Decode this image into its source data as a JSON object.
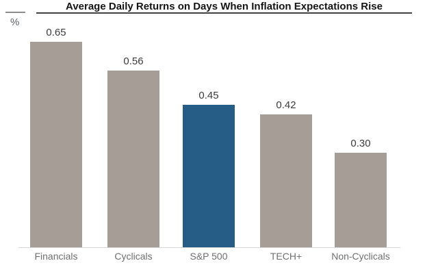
{
  "chart_data": {
    "type": "bar",
    "title": "Average Daily Returns on Days When Inflation Expectations Rise",
    "ylabel": "%",
    "categories": [
      "Financials",
      "Cyclicals",
      "S&P 500",
      "TECH+",
      "Non-Cyclicals"
    ],
    "values": [
      0.65,
      0.56,
      0.45,
      0.42,
      0.3
    ],
    "value_labels": [
      "0.65",
      "0.56",
      "0.45",
      "0.42",
      "0.30"
    ],
    "series_colors": [
      "#a59d96",
      "#a59d96",
      "#265d87",
      "#a59d96",
      "#a59d96"
    ],
    "highlight_category": "S&P 500",
    "bar_color_default": "#a59d96",
    "bar_color_highlight": "#265d87",
    "axis_line_color": "#d6d6d6",
    "ylim": [
      0,
      0.72
    ],
    "grid": false,
    "legend": false,
    "value_labels_position": "above-bars"
  }
}
